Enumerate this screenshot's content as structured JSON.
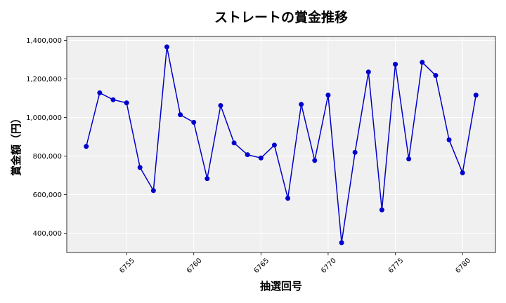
{
  "chart_data": {
    "type": "line",
    "title": "ストレートの賞金推移",
    "xlabel": "抽選回号",
    "ylabel": "賞金額（円）",
    "x": [
      6752,
      6753,
      6754,
      6755,
      6756,
      6757,
      6758,
      6759,
      6760,
      6761,
      6762,
      6763,
      6764,
      6765,
      6766,
      6767,
      6768,
      6769,
      6770,
      6771,
      6772,
      6773,
      6774,
      6775,
      6776,
      6777,
      6778,
      6779,
      6780,
      6781
    ],
    "series": [
      {
        "values": [
          850000,
          1128000,
          1092000,
          1076000,
          741000,
          621000,
          1366000,
          1014000,
          975000,
          683000,
          1062000,
          868000,
          807000,
          790000,
          857000,
          581000,
          1068000,
          777000,
          1116000,
          351000,
          819000,
          1236000,
          521000,
          1276000,
          785000,
          1286000,
          1218000,
          884000,
          713000,
          1116000
        ],
        "color": "#0000cc"
      }
    ],
    "xticks": [
      "6755",
      "6760",
      "6765",
      "6770",
      "6775",
      "6780"
    ],
    "yticks": [
      "400,000",
      "600,000",
      "800,000",
      "1,000,000",
      "1,200,000",
      "1,400,000"
    ],
    "xlim": [
      6750.55,
      6782.45
    ],
    "ylim": [
      300000,
      1420000
    ],
    "grid": true,
    "background": "#f0f0f0"
  }
}
